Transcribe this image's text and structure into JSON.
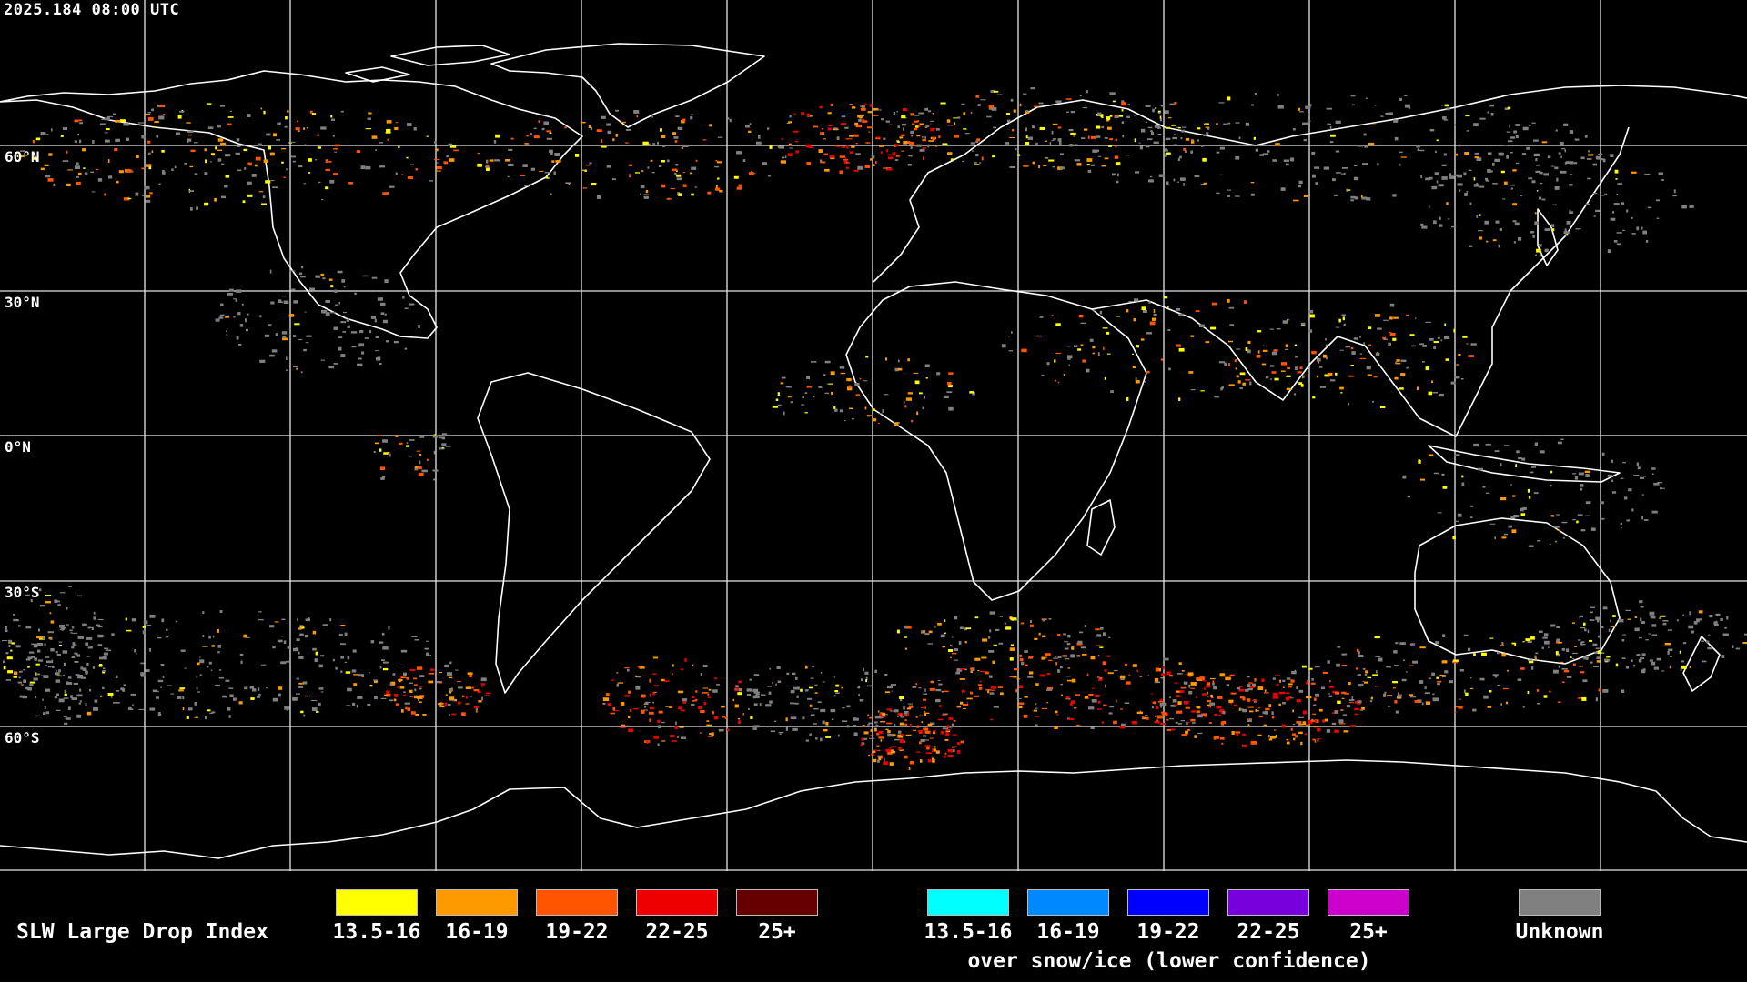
{
  "timestamp": "2025.184 08:00 UTC",
  "lat_labels": [
    "60°N",
    "30°N",
    "0°N",
    "30°S",
    "60°S"
  ],
  "legend": {
    "title": "SLW Large Drop Index",
    "groups": [
      {
        "label": "13.5-16",
        "color": "#ffff00"
      },
      {
        "label": "16-19",
        "color": "#ff9900"
      },
      {
        "label": "19-22",
        "color": "#ff5500"
      },
      {
        "label": "22-25",
        "color": "#ee0000"
      },
      {
        "label": "25+",
        "color": "#660000"
      }
    ],
    "snow_groups": [
      {
        "label": "13.5-16",
        "color": "#00ffff"
      },
      {
        "label": "16-19",
        "color": "#0088ff"
      },
      {
        "label": "19-22",
        "color": "#0000ff"
      },
      {
        "label": "22-25",
        "color": "#7700dd"
      },
      {
        "label": "25+",
        "color": "#cc00cc"
      }
    ],
    "snow_note": "over snow/ice (lower confidence)",
    "unknown": {
      "label": "Unknown",
      "color": "#808080"
    }
  }
}
